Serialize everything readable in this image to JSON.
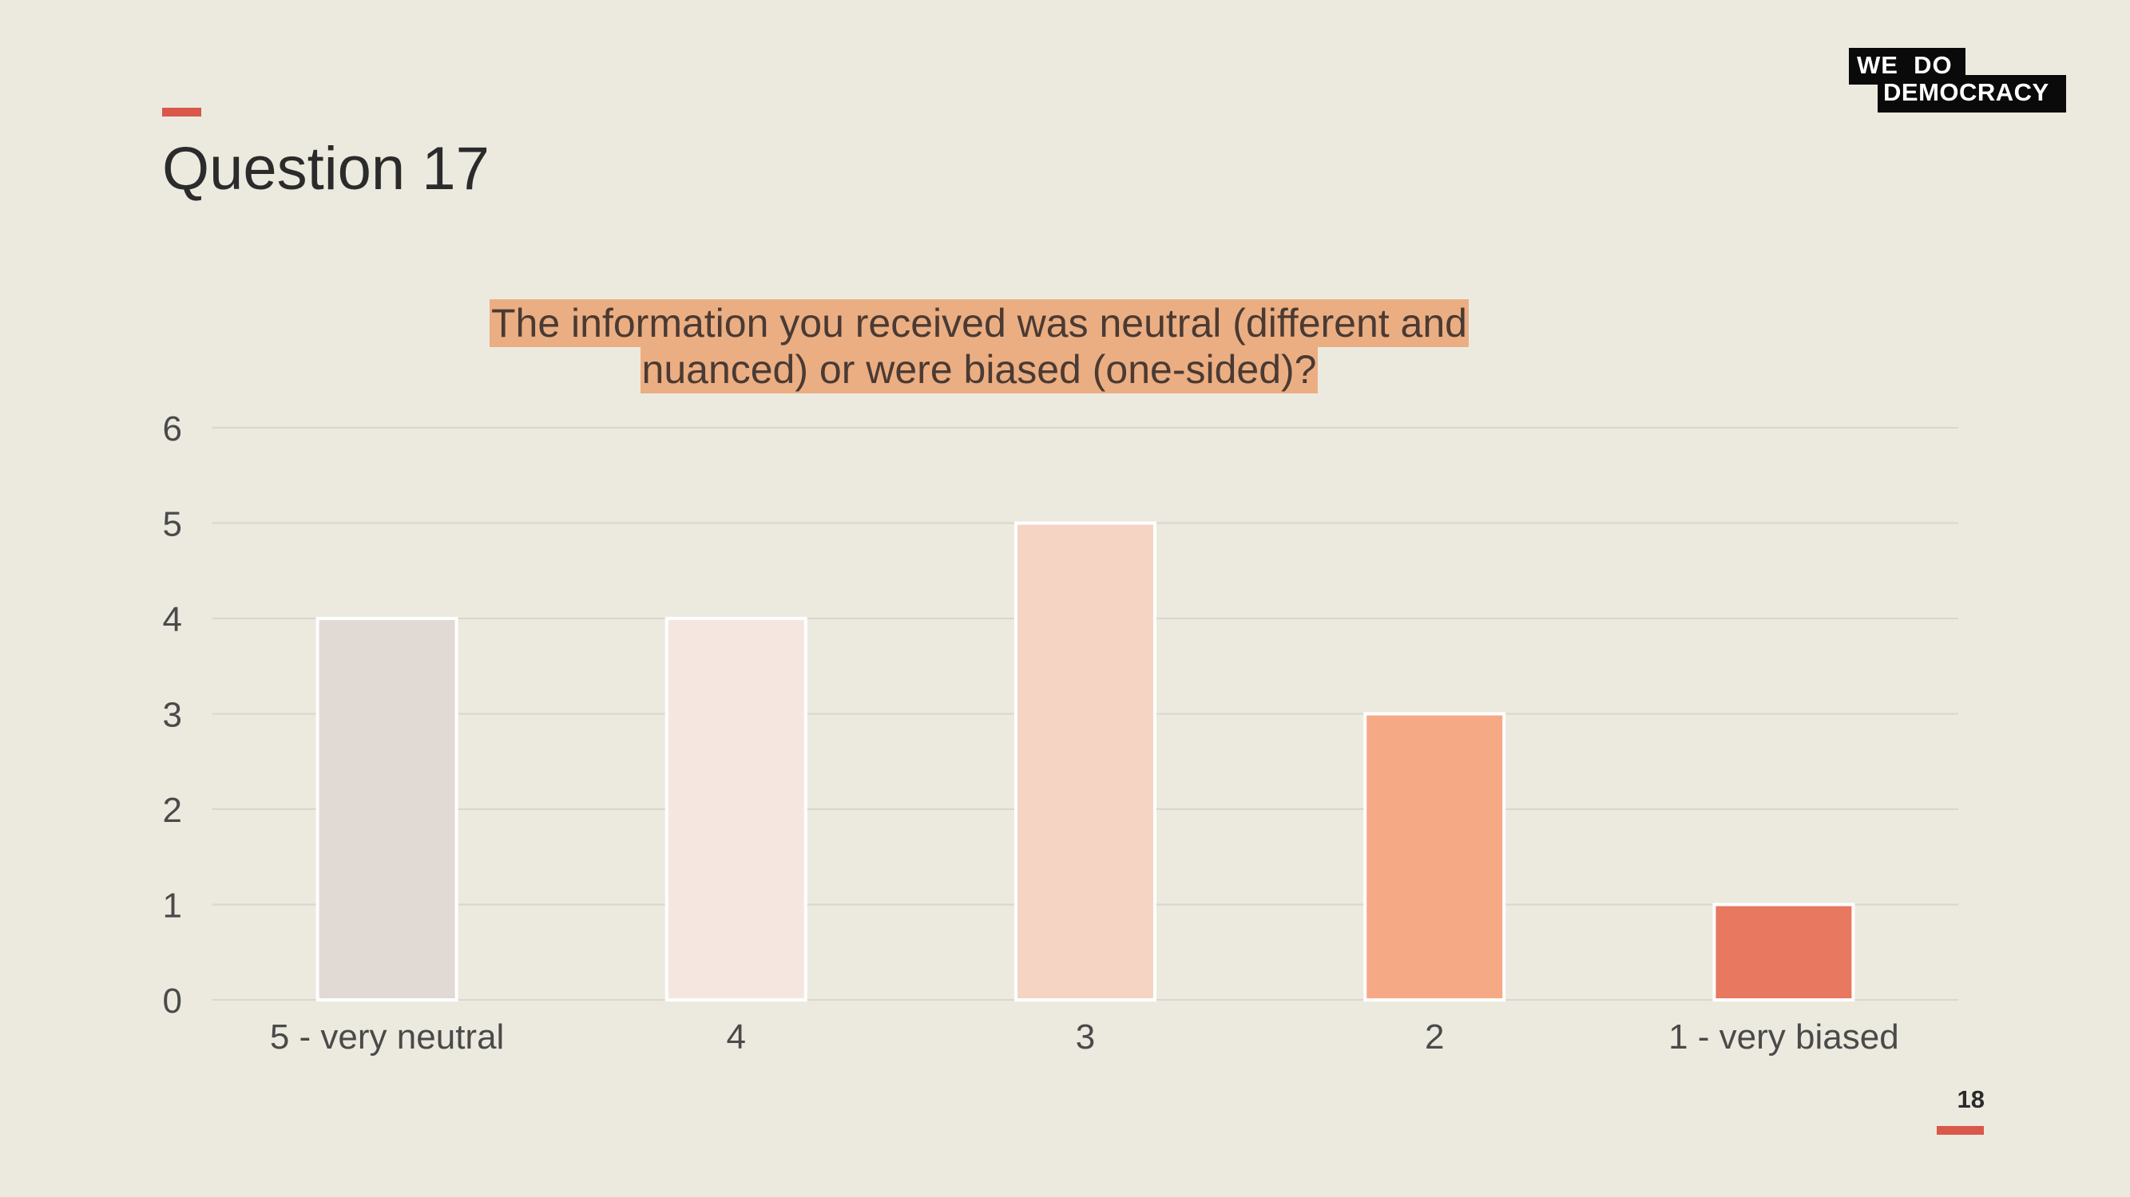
{
  "slide": {
    "title": "Question 17",
    "page_number": "18"
  },
  "logo": {
    "line1": "WE  DO",
    "line2": "DEMOCRACY"
  },
  "colors": {
    "background": "#ECEADF",
    "accent": "#D9574B",
    "title_highlight": "#EBAE82",
    "grid": "#D8D6CE"
  },
  "chart_data": {
    "type": "bar",
    "title": "The information you received was neutral (different and nuanced) or were biased (one-sided)?",
    "categories": [
      "5 - very neutral",
      "4",
      "3",
      "2",
      "1 - very biased"
    ],
    "values": [
      4,
      4,
      5,
      3,
      1
    ],
    "bar_colors": [
      "#E1DAD4",
      "#F5E6DF",
      "#F5D4C4",
      "#F6A985",
      "#E8785F"
    ],
    "ylim": [
      0,
      6
    ],
    "yticks": [
      0,
      1,
      2,
      3,
      4,
      5,
      6
    ],
    "grid": true,
    "legend": "none"
  }
}
